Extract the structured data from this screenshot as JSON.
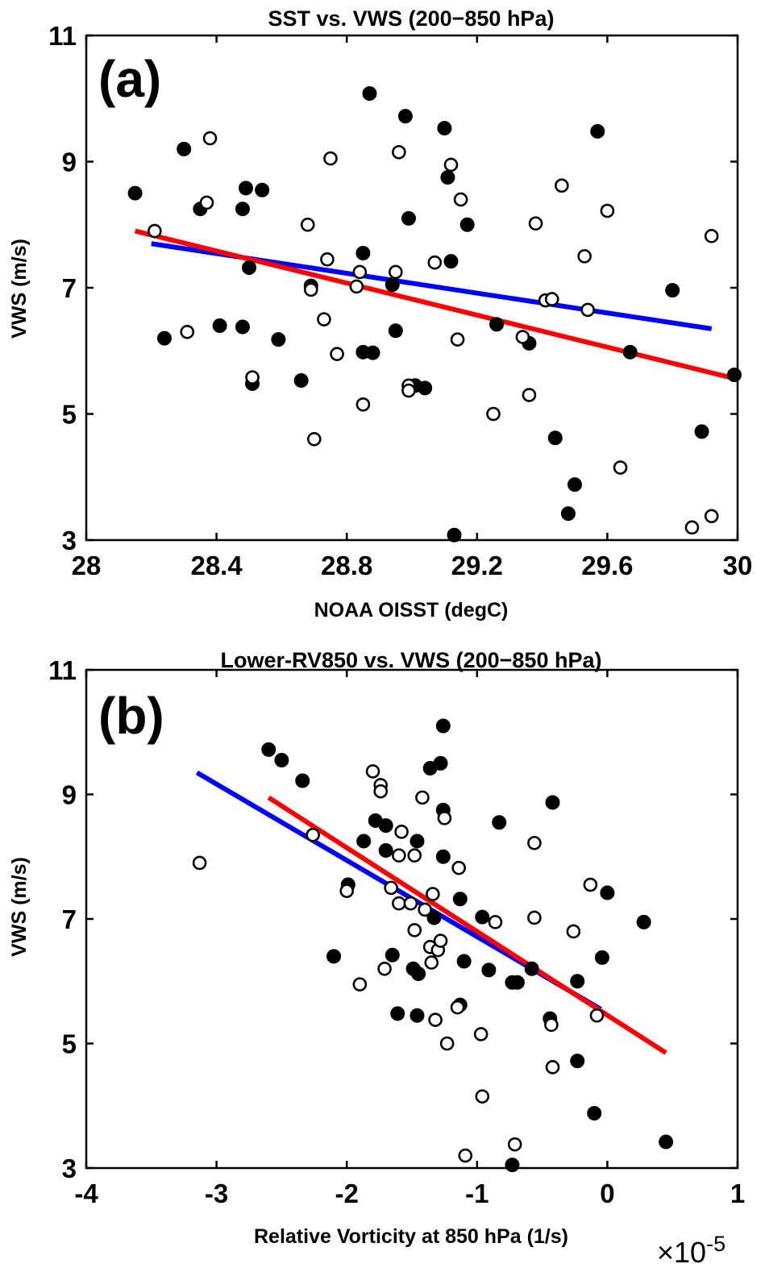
{
  "chart_data": [
    {
      "type": "scatter",
      "panel_label": "(a)",
      "title": "SST vs. VWS (200−850 hPa)",
      "xlabel": "NOAA OISST (degC)",
      "ylabel": "VWS (m/s)",
      "xlim": [
        28,
        30
      ],
      "ylim": [
        3,
        11
      ],
      "x_ticks": [
        "28",
        "28.4",
        "28.8",
        "29.2",
        "29.6",
        "30"
      ],
      "y_ticks": [
        "3",
        "5",
        "7",
        "9",
        "11"
      ],
      "grid": false,
      "series": [
        {
          "marker": "filled circle",
          "color": "#000000",
          "points": [
            [
              28.15,
              8.5
            ],
            [
              28.24,
              6.2
            ],
            [
              28.3,
              9.2
            ],
            [
              28.35,
              8.25
            ],
            [
              28.41,
              6.4
            ],
            [
              28.48,
              8.25
            ],
            [
              28.48,
              6.38
            ],
            [
              28.49,
              8.58
            ],
            [
              28.5,
              7.32
            ],
            [
              28.51,
              5.48
            ],
            [
              28.54,
              8.55
            ],
            [
              28.59,
              6.18
            ],
            [
              28.66,
              5.53
            ],
            [
              28.69,
              7.03
            ],
            [
              28.85,
              7.55
            ],
            [
              28.85,
              5.98
            ],
            [
              28.87,
              10.08
            ],
            [
              28.88,
              5.97
            ],
            [
              28.94,
              7.05
            ],
            [
              28.95,
              6.32
            ],
            [
              28.98,
              9.72
            ],
            [
              28.99,
              8.1
            ],
            [
              29.01,
              5.45
            ],
            [
              29.04,
              5.41
            ],
            [
              29.1,
              9.53
            ],
            [
              29.11,
              8.75
            ],
            [
              29.12,
              7.42
            ],
            [
              29.13,
              3.08
            ],
            [
              29.17,
              8.0
            ],
            [
              29.26,
              6.42
            ],
            [
              29.36,
              6.12
            ],
            [
              29.44,
              4.62
            ],
            [
              29.48,
              3.42
            ],
            [
              29.5,
              3.88
            ],
            [
              29.57,
              9.48
            ],
            [
              29.67,
              5.98
            ],
            [
              29.8,
              6.96
            ],
            [
              29.89,
              4.72
            ],
            [
              29.99,
              5.62
            ]
          ]
        },
        {
          "marker": "open circle",
          "color": "#000000",
          "points": [
            [
              28.21,
              7.9
            ],
            [
              28.31,
              6.3
            ],
            [
              28.37,
              8.35
            ],
            [
              28.38,
              9.37
            ],
            [
              28.51,
              5.58
            ],
            [
              28.68,
              8.0
            ],
            [
              28.69,
              6.97
            ],
            [
              28.7,
              4.6
            ],
            [
              28.73,
              6.5
            ],
            [
              28.74,
              7.45
            ],
            [
              28.75,
              9.05
            ],
            [
              28.77,
              5.95
            ],
            [
              28.83,
              7.02
            ],
            [
              28.84,
              7.25
            ],
            [
              28.85,
              5.15
            ],
            [
              28.95,
              7.25
            ],
            [
              28.96,
              9.15
            ],
            [
              28.99,
              5.45
            ],
            [
              28.99,
              5.37
            ],
            [
              29.07,
              7.4
            ],
            [
              29.12,
              8.95
            ],
            [
              29.14,
              6.18
            ],
            [
              29.15,
              8.4
            ],
            [
              29.25,
              5.0
            ],
            [
              29.34,
              6.22
            ],
            [
              29.36,
              5.3
            ],
            [
              29.38,
              8.02
            ],
            [
              29.41,
              6.8
            ],
            [
              29.43,
              6.82
            ],
            [
              29.46,
              8.62
            ],
            [
              29.53,
              7.5
            ],
            [
              29.54,
              6.65
            ],
            [
              29.6,
              8.22
            ],
            [
              29.64,
              4.15
            ],
            [
              29.86,
              3.2
            ],
            [
              29.92,
              7.82
            ],
            [
              29.92,
              3.38
            ]
          ]
        }
      ],
      "fit_lines": [
        {
          "color": "#0000ff",
          "x": [
            28.2,
            29.92
          ],
          "y": [
            7.7,
            6.35
          ]
        },
        {
          "color": "#ff0000",
          "x": [
            28.15,
            30.0
          ],
          "y": [
            7.9,
            5.55
          ]
        }
      ]
    },
    {
      "type": "scatter",
      "panel_label": "(b)",
      "title": "Lower-RV850 vs. VWS (200−850 hPa)",
      "xlabel": "Relative Vorticity at 850 hPa (1/s)",
      "ylabel": "VWS (m/s)",
      "x_exponent_label": "×10",
      "x_exponent_power": "-5",
      "xlim": [
        -4,
        1
      ],
      "ylim": [
        3,
        11
      ],
      "x_ticks": [
        "-4",
        "-3",
        "-2",
        "-1",
        "0",
        "1"
      ],
      "y_ticks": [
        "3",
        "5",
        "7",
        "9",
        "11"
      ],
      "grid": false,
      "series": [
        {
          "marker": "filled circle",
          "color": "#000000",
          "points": [
            [
              -2.6,
              9.72
            ],
            [
              -2.5,
              9.55
            ],
            [
              -2.34,
              9.22
            ],
            [
              -2.1,
              6.4
            ],
            [
              -1.99,
              7.55
            ],
            [
              -1.87,
              8.25
            ],
            [
              -1.78,
              8.58
            ],
            [
              -1.7,
              8.5
            ],
            [
              -1.7,
              8.1
            ],
            [
              -1.65,
              6.42
            ],
            [
              -1.61,
              5.48
            ],
            [
              -1.49,
              6.2
            ],
            [
              -1.46,
              8.25
            ],
            [
              -1.46,
              5.45
            ],
            [
              -1.45,
              6.12
            ],
            [
              -1.36,
              9.42
            ],
            [
              -1.33,
              7.02
            ],
            [
              -1.28,
              9.5
            ],
            [
              -1.26,
              10.1
            ],
            [
              -1.26,
              8.75
            ],
            [
              -1.26,
              8.0
            ],
            [
              -1.13,
              7.32
            ],
            [
              -1.13,
              5.62
            ],
            [
              -1.1,
              6.32
            ],
            [
              -0.96,
              7.03
            ],
            [
              -0.91,
              6.18
            ],
            [
              -0.83,
              8.55
            ],
            [
              -0.73,
              5.98
            ],
            [
              -0.69,
              5.98
            ],
            [
              -0.73,
              3.05
            ],
            [
              -0.58,
              6.2
            ],
            [
              -0.42,
              8.87
            ],
            [
              -0.44,
              5.4
            ],
            [
              -0.23,
              6.0
            ],
            [
              -0.23,
              4.72
            ],
            [
              -0.1,
              3.88
            ],
            [
              -0.04,
              6.38
            ],
            [
              0.0,
              7.42
            ],
            [
              0.28,
              6.95
            ],
            [
              0.45,
              3.42
            ]
          ]
        },
        {
          "marker": "open circle",
          "color": "#000000",
          "points": [
            [
              -3.13,
              7.9
            ],
            [
              -2.26,
              8.35
            ],
            [
              -2.0,
              7.45
            ],
            [
              -1.9,
              5.95
            ],
            [
              -1.8,
              9.37
            ],
            [
              -1.74,
              9.15
            ],
            [
              -1.74,
              9.05
            ],
            [
              -1.71,
              6.2
            ],
            [
              -1.66,
              7.5
            ],
            [
              -1.6,
              8.02
            ],
            [
              -1.6,
              7.25
            ],
            [
              -1.58,
              8.4
            ],
            [
              -1.51,
              7.25
            ],
            [
              -1.48,
              8.02
            ],
            [
              -1.48,
              6.82
            ],
            [
              -1.42,
              8.95
            ],
            [
              -1.4,
              7.15
            ],
            [
              -1.36,
              6.55
            ],
            [
              -1.35,
              6.3
            ],
            [
              -1.34,
              7.4
            ],
            [
              -1.32,
              5.38
            ],
            [
              -1.3,
              6.5
            ],
            [
              -1.28,
              6.65
            ],
            [
              -1.25,
              8.62
            ],
            [
              -1.23,
              5.0
            ],
            [
              -1.14,
              7.82
            ],
            [
              -1.15,
              5.58
            ],
            [
              -1.09,
              3.2
            ],
            [
              -0.97,
              5.15
            ],
            [
              -0.96,
              4.15
            ],
            [
              -0.86,
              6.95
            ],
            [
              -0.71,
              3.38
            ],
            [
              -0.56,
              7.02
            ],
            [
              -0.56,
              8.22
            ],
            [
              -0.26,
              6.8
            ],
            [
              -0.13,
              7.55
            ],
            [
              -0.43,
              5.3
            ],
            [
              -0.42,
              4.62
            ],
            [
              -0.08,
              5.45
            ]
          ]
        }
      ],
      "fit_lines": [
        {
          "color": "#0000ff",
          "x": [
            -3.15,
            -0.05
          ],
          "y": [
            9.35,
            5.55
          ]
        },
        {
          "color": "#ff0000",
          "x": [
            -2.6,
            0.45
          ],
          "y": [
            8.95,
            4.85
          ]
        }
      ]
    }
  ]
}
